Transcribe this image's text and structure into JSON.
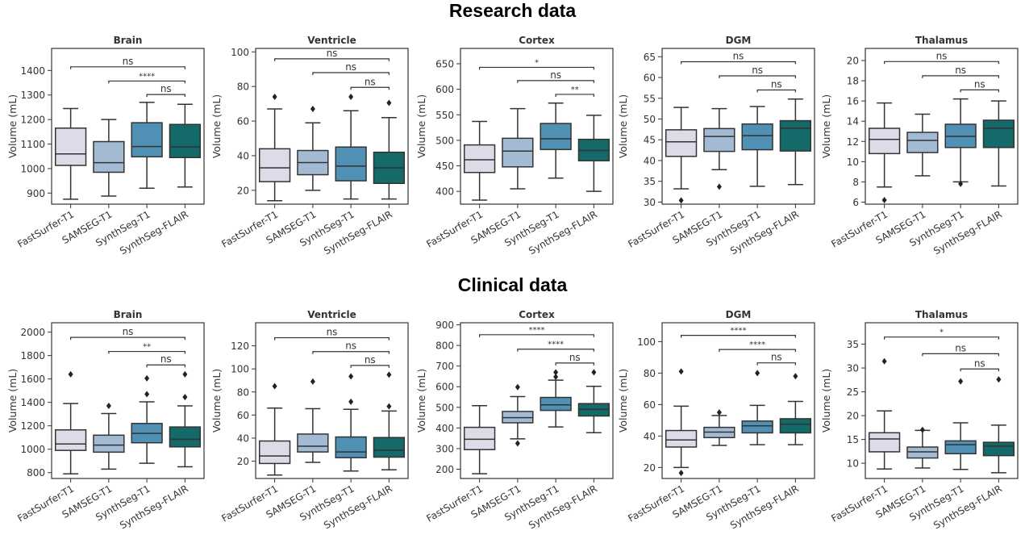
{
  "figure": {
    "row_titles": [
      "Research data",
      "Clinical data"
    ]
  },
  "chart_data": {
    "type": "box",
    "categories": [
      "FastSurfer-T1",
      "SAMSEG-T1",
      "SynthSeg-T1",
      "SynthSeg-FLAIR"
    ],
    "colors": [
      "#dcdbe8",
      "#a3bad3",
      "#4f90b4",
      "#136a68"
    ],
    "ylabel": "Volume (mL)",
    "rows": [
      {
        "title": "Research data",
        "panels": [
          {
            "title": "Brain",
            "ylim": [
              855,
              1490
            ],
            "yticks": [
              900,
              1000,
              1100,
              1200,
              1300,
              1400
            ],
            "boxes": [
              {
                "whislo": 875,
                "q1": 1013,
                "med": 1060,
                "q3": 1165,
                "whishi": 1245,
                "fliers": []
              },
              {
                "whislo": 888,
                "q1": 985,
                "med": 1024,
                "q3": 1110,
                "whishi": 1200,
                "fliers": []
              },
              {
                "whislo": 920,
                "q1": 1048,
                "med": 1090,
                "q3": 1187,
                "whishi": 1270,
                "fliers": []
              },
              {
                "whislo": 925,
                "q1": 1045,
                "med": 1088,
                "q3": 1180,
                "whishi": 1262,
                "fliers": []
              }
            ],
            "annotations": [
              {
                "from": 0,
                "to": 3,
                "y": 1415,
                "label": "ns"
              },
              {
                "from": 1,
                "to": 3,
                "y": 1357,
                "label": "****"
              },
              {
                "from": 2,
                "to": 3,
                "y": 1302,
                "label": "ns"
              }
            ]
          },
          {
            "title": "Ventricle",
            "ylim": [
              12,
              102
            ],
            "yticks": [
              20,
              40,
              60,
              80,
              100
            ],
            "boxes": [
              {
                "whislo": 14,
                "q1": 25,
                "med": 33,
                "q3": 44,
                "whishi": 67,
                "fliers": [
                  74
                ]
              },
              {
                "whislo": 20,
                "q1": 29,
                "med": 36,
                "q3": 43,
                "whishi": 59,
                "fliers": [
                  67
                ]
              },
              {
                "whislo": 15,
                "q1": 25.5,
                "med": 34,
                "q3": 45,
                "whishi": 66,
                "fliers": [
                  74
                ]
              },
              {
                "whislo": 15,
                "q1": 24,
                "med": 33,
                "q3": 42,
                "whishi": 62,
                "fliers": [
                  70.5
                ]
              }
            ],
            "annotations": [
              {
                "from": 0,
                "to": 3,
                "y": 96,
                "label": "ns"
              },
              {
                "from": 1,
                "to": 3,
                "y": 88,
                "label": "ns"
              },
              {
                "from": 2,
                "to": 3,
                "y": 79.5,
                "label": "ns"
              }
            ]
          },
          {
            "title": "Cortex",
            "ylim": [
              375,
              680
            ],
            "yticks": [
              400,
              450,
              500,
              550,
              600,
              650
            ],
            "boxes": [
              {
                "whislo": 383,
                "q1": 437,
                "med": 462,
                "q3": 491,
                "whishi": 537,
                "fliers": []
              },
              {
                "whislo": 405,
                "q1": 448,
                "med": 479,
                "q3": 504,
                "whishi": 562,
                "fliers": []
              },
              {
                "whislo": 426,
                "q1": 482,
                "med": 503,
                "q3": 533,
                "whishi": 573,
                "fliers": []
              },
              {
                "whislo": 400,
                "q1": 460,
                "med": 480,
                "q3": 502,
                "whishi": 549,
                "fliers": []
              }
            ],
            "annotations": [
              {
                "from": 0,
                "to": 3,
                "y": 643,
                "label": "*"
              },
              {
                "from": 1,
                "to": 3,
                "y": 617,
                "label": "ns"
              },
              {
                "from": 2,
                "to": 3,
                "y": 590,
                "label": "**"
              }
            ]
          },
          {
            "title": "DGM",
            "ylim": [
              29.5,
              67
            ],
            "yticks": [
              30,
              35,
              40,
              45,
              50,
              55,
              60,
              65
            ],
            "boxes": [
              {
                "whislo": 33.2,
                "q1": 41,
                "med": 44.5,
                "q3": 47.4,
                "whishi": 52.8,
                "fliers": [
                  30.4
                ]
              },
              {
                "whislo": 37.8,
                "q1": 42.2,
                "med": 45.8,
                "q3": 47.7,
                "whishi": 52.5,
                "fliers": [
                  33.7
                ]
              },
              {
                "whislo": 33.8,
                "q1": 42.6,
                "med": 46,
                "q3": 48.8,
                "whishi": 53,
                "fliers": []
              },
              {
                "whislo": 34.2,
                "q1": 42.3,
                "med": 47.8,
                "q3": 49.6,
                "whishi": 54.8,
                "fliers": []
              }
            ],
            "annotations": [
              {
                "from": 0,
                "to": 3,
                "y": 63.8,
                "label": "ns"
              },
              {
                "from": 1,
                "to": 3,
                "y": 60.4,
                "label": "ns"
              },
              {
                "from": 2,
                "to": 3,
                "y": 57,
                "label": "ns"
              }
            ]
          },
          {
            "title": "Thalamus",
            "ylim": [
              5.8,
              21.2
            ],
            "yticks": [
              6,
              8,
              10,
              12,
              14,
              16,
              18,
              20
            ],
            "boxes": [
              {
                "whislo": 7.5,
                "q1": 10.8,
                "med": 12.2,
                "q3": 13.3,
                "whishi": 15.8,
                "fliers": [
                  6.2
                ]
              },
              {
                "whislo": 8.6,
                "q1": 10.9,
                "med": 12.1,
                "q3": 12.9,
                "whishi": 14.7,
                "fliers": []
              },
              {
                "whislo": 8,
                "q1": 11.4,
                "med": 12.5,
                "q3": 13.7,
                "whishi": 16.2,
                "fliers": [
                  7.8
                ]
              },
              {
                "whislo": 7.6,
                "q1": 11.4,
                "med": 13.3,
                "q3": 14.1,
                "whishi": 16,
                "fliers": []
              }
            ],
            "annotations": [
              {
                "from": 0,
                "to": 3,
                "y": 19.9,
                "label": "ns"
              },
              {
                "from": 1,
                "to": 3,
                "y": 18.5,
                "label": "ns"
              },
              {
                "from": 2,
                "to": 3,
                "y": 17.1,
                "label": "ns"
              }
            ]
          }
        ]
      },
      {
        "title": "Clinical data",
        "panels": [
          {
            "title": "Brain",
            "ylim": [
              750,
              2080
            ],
            "yticks": [
              800,
              1000,
              1200,
              1400,
              1600,
              1800,
              2000
            ],
            "boxes": [
              {
                "whislo": 790,
                "q1": 990,
                "med": 1045,
                "q3": 1165,
                "whishi": 1390,
                "fliers": [
                  1640
                ]
              },
              {
                "whislo": 830,
                "q1": 975,
                "med": 1035,
                "q3": 1120,
                "whishi": 1305,
                "fliers": [
                  1370
                ]
              },
              {
                "whislo": 880,
                "q1": 1055,
                "med": 1135,
                "q3": 1220,
                "whishi": 1405,
                "fliers": [
                  1470,
                  1605
                ]
              },
              {
                "whislo": 850,
                "q1": 1020,
                "med": 1085,
                "q3": 1190,
                "whishi": 1370,
                "fliers": [
                  1445,
                  1640
                ]
              }
            ],
            "annotations": [
              {
                "from": 0,
                "to": 3,
                "y": 1955,
                "label": "ns"
              },
              {
                "from": 1,
                "to": 3,
                "y": 1835,
                "label": "**"
              },
              {
                "from": 2,
                "to": 3,
                "y": 1720,
                "label": "ns"
              }
            ]
          },
          {
            "title": "Ventricle",
            "ylim": [
              5,
              140
            ],
            "yticks": [
              20,
              40,
              60,
              80,
              100,
              120
            ],
            "boxes": [
              {
                "whislo": 8,
                "q1": 18,
                "med": 24.5,
                "q3": 37.5,
                "whishi": 66,
                "fliers": [
                  85
                ]
              },
              {
                "whislo": 19,
                "q1": 28,
                "med": 33,
                "q3": 43.5,
                "whishi": 65.5,
                "fliers": [
                  89
                ]
              },
              {
                "whislo": 11.5,
                "q1": 23,
                "med": 28,
                "q3": 41,
                "whishi": 65,
                "fliers": [
                  71.5,
                  93.5
                ]
              },
              {
                "whislo": 12.5,
                "q1": 23.5,
                "med": 29.5,
                "q3": 40.5,
                "whishi": 63.5,
                "fliers": [
                  67.5,
                  95
                ]
              }
            ],
            "annotations": [
              {
                "from": 0,
                "to": 3,
                "y": 127,
                "label": "ns"
              },
              {
                "from": 1,
                "to": 3,
                "y": 115,
                "label": "ns"
              },
              {
                "from": 2,
                "to": 3,
                "y": 103,
                "label": "ns"
              }
            ]
          },
          {
            "title": "Cortex",
            "ylim": [
              155,
              910
            ],
            "yticks": [
              200,
              300,
              400,
              500,
              600,
              700,
              800,
              900
            ],
            "boxes": [
              {
                "whislo": 178,
                "q1": 295,
                "med": 345,
                "q3": 403,
                "whishi": 508,
                "fliers": []
              },
              {
                "whislo": 347,
                "q1": 425,
                "med": 450,
                "q3": 480,
                "whishi": 552,
                "fliers": [
                  325,
                  598
                ]
              },
              {
                "whislo": 405,
                "q1": 485,
                "med": 512,
                "q3": 548,
                "whishi": 632,
                "fliers": [
                  648,
                  670
                ]
              },
              {
                "whislo": 377,
                "q1": 458,
                "med": 490,
                "q3": 518,
                "whishi": 602,
                "fliers": [
                  670
                ]
              }
            ],
            "annotations": [
              {
                "from": 0,
                "to": 3,
                "y": 852,
                "label": "****"
              },
              {
                "from": 1,
                "to": 3,
                "y": 782,
                "label": "****"
              },
              {
                "from": 2,
                "to": 3,
                "y": 715,
                "label": "ns"
              }
            ]
          },
          {
            "title": "DGM",
            "ylim": [
              13,
              112
            ],
            "yticks": [
              20,
              40,
              60,
              80,
              100
            ],
            "boxes": [
              {
                "whislo": 20,
                "q1": 33,
                "med": 37.5,
                "q3": 43.5,
                "whishi": 59,
                "fliers": [
                  16.5,
                  81
                ]
              },
              {
                "whislo": 34,
                "q1": 39,
                "med": 42.5,
                "q3": 45.5,
                "whishi": 53,
                "fliers": [
                  55
                ]
              },
              {
                "whislo": 34.5,
                "q1": 42,
                "med": 46.5,
                "q3": 49.5,
                "whishi": 59.5,
                "fliers": [
                  80
                ]
              },
              {
                "whislo": 34.5,
                "q1": 42,
                "med": 47.5,
                "q3": 51,
                "whishi": 62,
                "fliers": [
                  78
                ]
              }
            ],
            "annotations": [
              {
                "from": 0,
                "to": 3,
                "y": 104,
                "label": "****"
              },
              {
                "from": 1,
                "to": 3,
                "y": 95,
                "label": "****"
              },
              {
                "from": 2,
                "to": 3,
                "y": 86.5,
                "label": "ns"
              }
            ]
          },
          {
            "title": "Thalamus",
            "ylim": [
              6.8,
              39.5
            ],
            "yticks": [
              10,
              15,
              20,
              25,
              30,
              35
            ],
            "boxes": [
              {
                "whislo": 8.8,
                "q1": 12.4,
                "med": 15.1,
                "q3": 16.4,
                "whishi": 21,
                "fliers": [
                  31.4
                ]
              },
              {
                "whislo": 9,
                "q1": 11.1,
                "med": 12.4,
                "q3": 13.4,
                "whishi": 16.9,
                "fliers": [
                  17
                ]
              },
              {
                "whislo": 8.7,
                "q1": 12,
                "med": 13.9,
                "q3": 14.7,
                "whishi": 18.5,
                "fliers": [
                  27.2
                ]
              },
              {
                "whislo": 8,
                "q1": 11.6,
                "med": 13.6,
                "q3": 14.4,
                "whishi": 18,
                "fliers": [
                  27.6
                ]
              }
            ],
            "annotations": [
              {
                "from": 0,
                "to": 3,
                "y": 36.5,
                "label": "*"
              },
              {
                "from": 1,
                "to": 3,
                "y": 33,
                "label": "ns"
              },
              {
                "from": 2,
                "to": 3,
                "y": 29.8,
                "label": "ns"
              }
            ]
          }
        ]
      }
    ]
  }
}
